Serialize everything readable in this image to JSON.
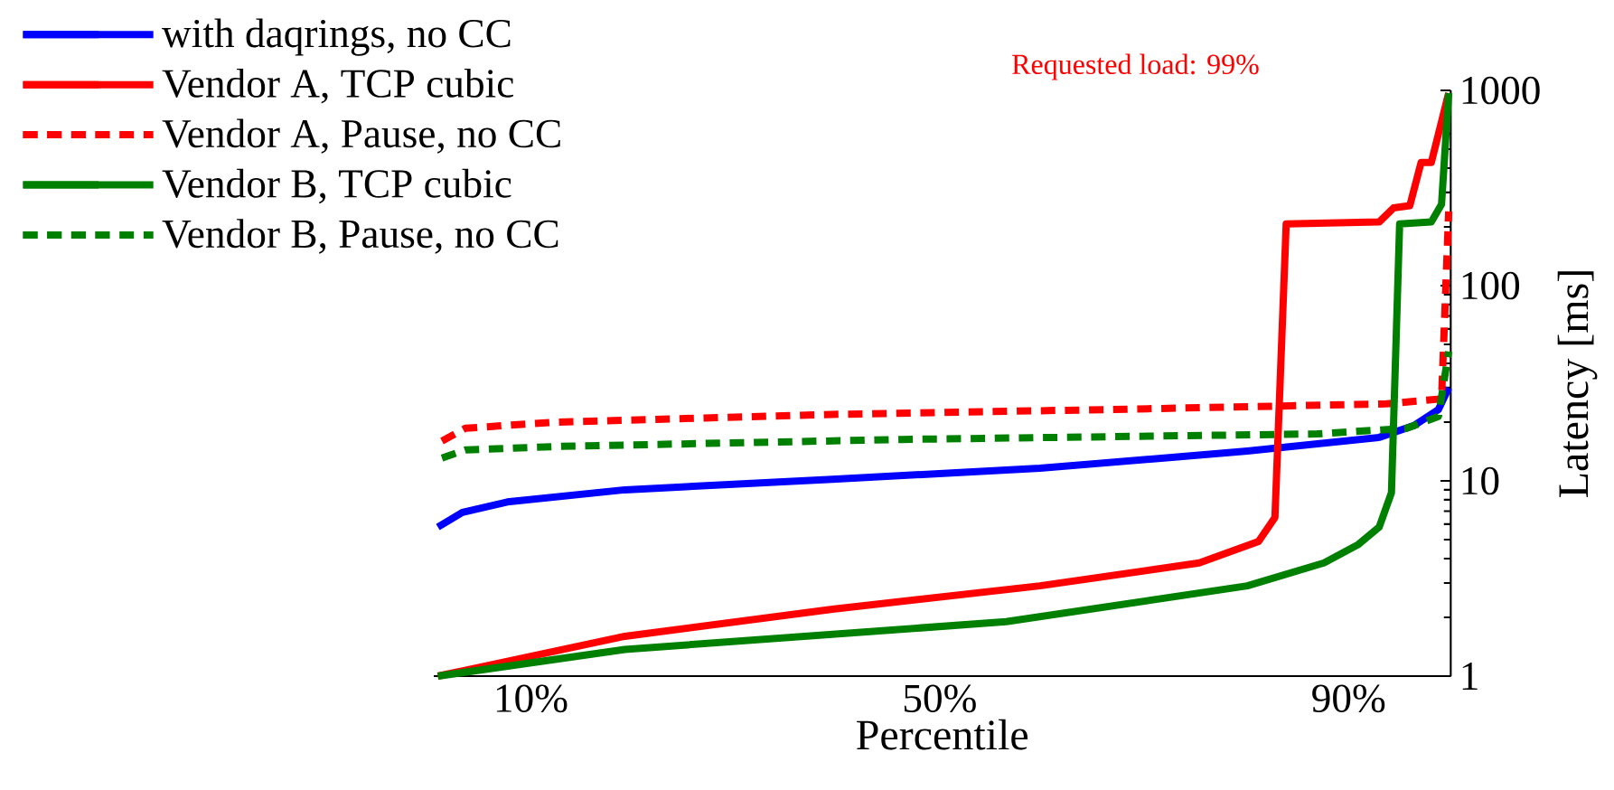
{
  "chart_data": {
    "type": "line",
    "xlabel": "Percentile",
    "ylabel": "Latency [ms]",
    "log": "y",
    "legend": "top left",
    "xlim": [
      0.5,
      100
    ],
    "xticks": [
      {
        "value": 10,
        "label": "10%"
      },
      {
        "value": 50,
        "label": "50%"
      },
      {
        "value": 90,
        "label": "90%"
      }
    ],
    "ylim": [
      1,
      1000
    ],
    "yticks": [
      1,
      10,
      100,
      1000
    ],
    "annotations": [
      "Requested load: 99%"
    ],
    "series": [
      {
        "name": "with daqrings, no CC",
        "color": "#0000ff",
        "line_style": "solid",
        "x": [
          0.9,
          3.3,
          7.7,
          19.2,
          39.5,
          59.8,
          80.1,
          93.0,
          96.4,
          98.8,
          99.8
        ],
        "values": [
          5.8,
          6.9,
          7.8,
          9.0,
          10.2,
          11.6,
          14.2,
          16.7,
          19.2,
          23.2,
          30
        ]
      },
      {
        "name": "Vendor A, TCP cubic",
        "color": "#ff0000",
        "line_style": "solid",
        "x": [
          0.9,
          19.2,
          39.5,
          59.8,
          75.4,
          81.2,
          82.8,
          83.9,
          93.0,
          94.4,
          96.0,
          97.1,
          98.1,
          99.8
        ],
        "values": [
          1.0,
          1.6,
          2.2,
          2.9,
          3.8,
          4.9,
          6.5,
          207,
          212,
          250,
          257,
          427,
          427,
          968
        ]
      },
      {
        "name": "Vendor A, Pause, no CC",
        "color": "#ff0000",
        "line_style": "dashed",
        "x": [
          1.3,
          3.6,
          12.4,
          39.5,
          66.6,
          93.7,
          99.1,
          99.8
        ],
        "values": [
          16.0,
          18.6,
          20.0,
          21.9,
          23.2,
          24.8,
          26.3,
          240
        ]
      },
      {
        "name": "Vendor B, TCP cubic",
        "color": "#008000",
        "line_style": "solid",
        "x": [
          0.9,
          19.2,
          56.5,
          80.1,
          87.6,
          90.9,
          93.0,
          94.2,
          95.0,
          98.1,
          99.1,
          99.8
        ],
        "values": [
          1.0,
          1.37,
          1.9,
          2.9,
          3.8,
          4.7,
          5.8,
          8.7,
          207,
          212,
          261,
          968
        ]
      },
      {
        "name": "Vendor B, Pause, no CC",
        "color": "#008000",
        "line_style": "dashed",
        "x": [
          1.3,
          3.6,
          12.4,
          46.3,
          86.9,
          95.7,
          98.8,
          99.8
        ],
        "values": [
          13.1,
          14.4,
          15.0,
          16.3,
          17.4,
          18.6,
          21.4,
          46
        ]
      }
    ]
  }
}
